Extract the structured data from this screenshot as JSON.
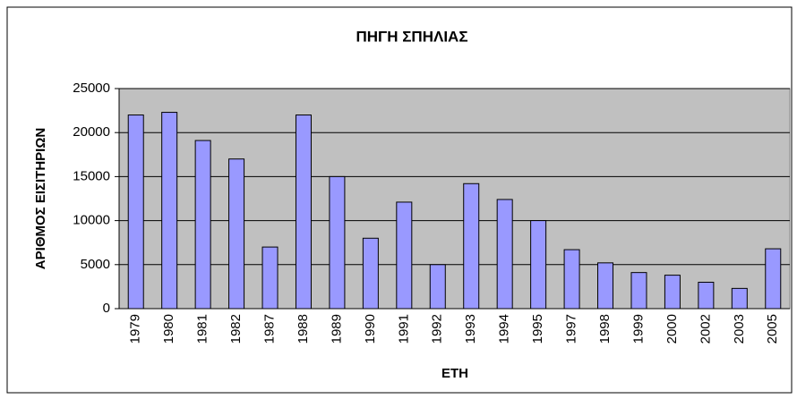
{
  "chart_data": {
    "type": "bar",
    "title": "ΠΗΓΗ ΣΠΗΛΙΑΣ",
    "xlabel": "ΕΤΗ",
    "ylabel": "ΑΡΙΘΜΟΣ ΕΙΣΙΤΗΡΙΩΝ",
    "categories": [
      "1979",
      "1980",
      "1981",
      "1982",
      "1987",
      "1988",
      "1989",
      "1990",
      "1991",
      "1992",
      "1993",
      "1994",
      "1995",
      "1997",
      "1998",
      "1999",
      "2000",
      "2002",
      "2003",
      "2005"
    ],
    "values": [
      22000,
      22300,
      19100,
      17000,
      7000,
      22000,
      15000,
      8000,
      12100,
      5000,
      14200,
      12400,
      10000,
      6700,
      5200,
      4100,
      3800,
      3000,
      2300,
      6800
    ],
    "color": "#9999ff",
    "ylim": [
      0,
      25000
    ],
    "yticks": [
      0,
      5000,
      10000,
      15000,
      20000,
      25000
    ],
    "grid": true
  }
}
